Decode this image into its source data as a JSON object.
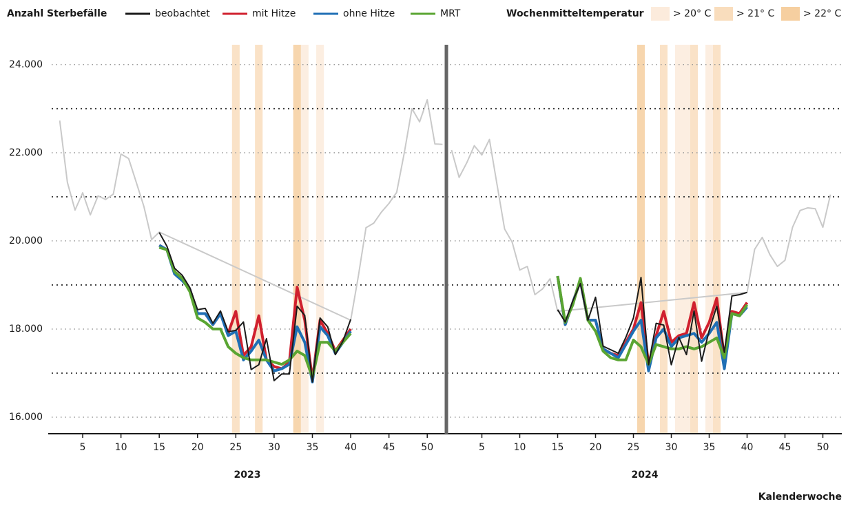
{
  "chart_data": {
    "type": "line",
    "title": "Anzahl Sterbefälle",
    "x_label": "Kalenderwoche",
    "ylim": [
      15625,
      24450
    ],
    "yticks": [
      {
        "value": 16000,
        "label": "16.000"
      },
      {
        "value": 18000,
        "label": "18.000"
      },
      {
        "value": 20000,
        "label": "20.000"
      },
      {
        "value": 22000,
        "label": "22.000"
      },
      {
        "value": 24000,
        "label": "24.000"
      }
    ],
    "minor_gridlines": [
      17000,
      19000,
      21000,
      23000
    ],
    "grid": true,
    "legend_names": [
      "beobachtet",
      "mit Hitze",
      "ohne Hitze",
      "MRT"
    ],
    "colors": [
      "#1a1a1a",
      "#d0202e",
      "#1f6fb5",
      "#5aa532"
    ],
    "context_color": "#c9c9c9",
    "heat_legend": {
      "title": "Wochenmitteltemperatur",
      "entries": [
        {
          "label": "> 20° C",
          "color": "#fcebdc"
        },
        {
          "label": "> 21° C",
          "color": "#f9ddbd"
        },
        {
          "label": "> 22° C",
          "color": "#f6cfa0"
        }
      ]
    },
    "panels": [
      {
        "label": "2023",
        "xlim": [
          0.5,
          52.5
        ],
        "xticks": [
          5,
          10,
          15,
          20,
          25,
          30,
          35,
          40,
          45,
          50
        ],
        "heat": [
          [
            34,
            36
          ],
          [
            25,
            28
          ],
          [
            33
          ]
        ],
        "context": {
          "x": [
            2,
            3,
            4,
            5,
            6,
            7,
            8,
            9,
            10,
            11,
            12,
            13,
            14,
            15,
            40,
            41,
            42,
            43,
            44,
            45,
            46,
            47,
            48,
            49,
            50,
            51,
            52
          ],
          "values": [
            22730,
            21330,
            20700,
            21090,
            20590,
            21020,
            20940,
            21060,
            21970,
            21870,
            21330,
            20780,
            20030,
            20200,
            18200,
            19200,
            20300,
            20400,
            20650,
            20850,
            21100,
            22000,
            23000,
            22700,
            23200,
            22200,
            22190
          ]
        },
        "x": [
          15,
          16,
          17,
          18,
          19,
          20,
          21,
          22,
          23,
          24,
          25,
          26,
          27,
          28,
          29,
          30,
          31,
          32,
          33,
          34,
          35,
          36,
          37,
          38,
          39,
          40
        ],
        "series": [
          {
            "values": [
              20190,
              19880,
              19380,
              19220,
              18940,
              18440,
              18470,
              18130,
              18410,
              17940,
              17970,
              18160,
              17080,
              17190,
              17780,
              16830,
              16980,
              16980,
              18520,
              18310,
              16800,
              18250,
              18050,
              17420,
              17730,
              18220
            ]
          },
          {
            "values": [
              19900,
              19800,
              19300,
              19150,
              18900,
              18350,
              18350,
              18100,
              18350,
              17900,
              18400,
              17400,
              17600,
              18300,
              17300,
              17150,
              17100,
              17250,
              18950,
              18200,
              16850,
              18200,
              17900,
              17500,
              17750,
              18000
            ]
          },
          {
            "values": [
              19900,
              19800,
              19250,
              19100,
              18900,
              18350,
              18350,
              18100,
              18350,
              17850,
              17950,
              17300,
              17500,
              17750,
              17300,
              17050,
              17100,
              17200,
              18050,
              17700,
              16800,
              18050,
              17850,
              17450,
              17700,
              17950
            ]
          },
          {
            "values": [
              19850,
              19800,
              19300,
              19150,
              18850,
              18250,
              18150,
              18000,
              18000,
              17600,
              17450,
              17350,
              17300,
              17300,
              17300,
              17250,
              17200,
              17300,
              17500,
              17400,
              16900,
              17700,
              17700,
              17500,
              17700,
              17900
            ]
          }
        ]
      },
      {
        "label": "2024",
        "xlim": [
          0.5,
          52.5
        ],
        "xticks": [
          5,
          10,
          15,
          20,
          25,
          30,
          35,
          40,
          45,
          50
        ],
        "heat": [
          [
            31,
            32,
            35
          ],
          [
            29,
            33,
            36
          ],
          [
            26
          ]
        ],
        "context": {
          "x": [
            1,
            2,
            3,
            4,
            5,
            6,
            7,
            8,
            9,
            10,
            11,
            12,
            13,
            14,
            15,
            40,
            41,
            42,
            43,
            44,
            45,
            46,
            47,
            48,
            49,
            50,
            51
          ],
          "values": [
            22060,
            21440,
            21770,
            22160,
            21950,
            22300,
            21280,
            20270,
            19970,
            19340,
            19420,
            18780,
            18910,
            19140,
            18400,
            18830,
            19810,
            20080,
            19690,
            19420,
            19560,
            20310,
            20690,
            20750,
            20730,
            20310,
            21050
          ]
        },
        "x": [
          15,
          16,
          17,
          18,
          19,
          20,
          21,
          22,
          23,
          24,
          25,
          26,
          27,
          28,
          29,
          30,
          31,
          32,
          33,
          34,
          35,
          36,
          37,
          38,
          39,
          40
        ],
        "series": [
          {
            "values": [
              18440,
              18160,
              18640,
              19030,
              18200,
              18720,
              17610,
              17530,
              17450,
              17810,
              18250,
              19170,
              17190,
              18130,
              18090,
              17190,
              17810,
              17420,
              18410,
              17270,
              17970,
              18520,
              17470,
              18750,
              18780,
              18830
            ]
          },
          {
            "values": [
              19200,
              18100,
              18600,
              19100,
              18200,
              18200,
              17550,
              17450,
              17400,
              17700,
              18000,
              18600,
              17200,
              17850,
              18400,
              17700,
              17850,
              17900,
              18600,
              17800,
              18150,
              18700,
              17350,
              18400,
              18350,
              18600
            ]
          },
          {
            "values": [
              19200,
              18100,
              18600,
              19100,
              18200,
              18200,
              17550,
              17450,
              17350,
              17650,
              17950,
              18200,
              17050,
              17800,
              18000,
              17600,
              17800,
              17850,
              17900,
              17700,
              17900,
              18150,
              17100,
              18350,
              18300,
              18500
            ]
          },
          {
            "values": [
              19200,
              18150,
              18550,
              19150,
              18200,
              17950,
              17500,
              17350,
              17300,
              17300,
              17750,
              17600,
              17200,
              17650,
              17600,
              17550,
              17550,
              17600,
              17550,
              17600,
              17700,
              17800,
              17350,
              18350,
              18300,
              18550
            ]
          }
        ]
      }
    ]
  }
}
